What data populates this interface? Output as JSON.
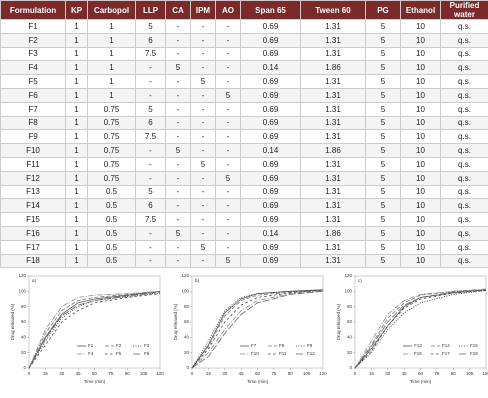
{
  "table": {
    "header": [
      "Formulation",
      "KP",
      "Carbopol",
      "LLP",
      "CA",
      "IPM",
      "AO",
      "Span 65",
      "Tween 60",
      "PG",
      "Ethanol",
      "Purified water"
    ],
    "rows": [
      [
        "F1",
        "1",
        "1",
        "5",
        "-",
        "-",
        "-",
        "0.69",
        "1.31",
        "5",
        "10",
        "q.s."
      ],
      [
        "F2",
        "1",
        "1",
        "6",
        "-",
        "-",
        "-",
        "0.69",
        "1.31",
        "5",
        "10",
        "q.s."
      ],
      [
        "F3",
        "1",
        "1",
        "7.5",
        "-",
        "-",
        "-",
        "0.69",
        "1.31",
        "5",
        "10",
        "q.s."
      ],
      [
        "F4",
        "1",
        "1",
        "-",
        "5",
        "-",
        "-",
        "0.14",
        "1.86",
        "5",
        "10",
        "q.s."
      ],
      [
        "F5",
        "1",
        "1",
        "-",
        "-",
        "5",
        "-",
        "0.69",
        "1.31",
        "5",
        "10",
        "q.s."
      ],
      [
        "F6",
        "1",
        "1",
        "-",
        "-",
        "-",
        "5",
        "0.69",
        "1.31",
        "5",
        "10",
        "q.s."
      ],
      [
        "F7",
        "1",
        "0.75",
        "5",
        "-",
        "-",
        "-",
        "0.69",
        "1.31",
        "5",
        "10",
        "q.s."
      ],
      [
        "F8",
        "1",
        "0.75",
        "6",
        "-",
        "-",
        "-",
        "0.69",
        "1.31",
        "5",
        "10",
        "q.s."
      ],
      [
        "F9",
        "1",
        "0.75",
        "7.5",
        "-",
        "-",
        "-",
        "0.69",
        "1.31",
        "5",
        "10",
        "q.s."
      ],
      [
        "F10",
        "1",
        "0.75",
        "-",
        "5",
        "-",
        "-",
        "0.14",
        "1.86",
        "5",
        "10",
        "q.s."
      ],
      [
        "F11",
        "1",
        "0.75",
        "-",
        "-",
        "5",
        "-",
        "0.69",
        "1.31",
        "5",
        "10",
        "q.s."
      ],
      [
        "F12",
        "1",
        "0.75",
        "-",
        "-",
        "-",
        "5",
        "0.69",
        "1.31",
        "5",
        "10",
        "q.s."
      ],
      [
        "F13",
        "1",
        "0.5",
        "5",
        "-",
        "-",
        "-",
        "0.69",
        "1.31",
        "5",
        "10",
        "q.s."
      ],
      [
        "F14",
        "1",
        "0.5",
        "6",
        "-",
        "-",
        "-",
        "0.69",
        "1.31",
        "5",
        "10",
        "q.s."
      ],
      [
        "F15",
        "1",
        "0.5",
        "7.5",
        "-",
        "-",
        "-",
        "0.69",
        "1.31",
        "5",
        "10",
        "q.s."
      ],
      [
        "F16",
        "1",
        "0.5",
        "-",
        "5",
        "-",
        "-",
        "0.14",
        "1.86",
        "5",
        "10",
        "q.s."
      ],
      [
        "F17",
        "1",
        "0.5",
        "-",
        "-",
        "5",
        "-",
        "0.69",
        "1.31",
        "5",
        "10",
        "q.s."
      ],
      [
        "F18",
        "1",
        "0.5",
        "-",
        "-",
        "-",
        "5",
        "0.69",
        "1.31",
        "5",
        "10",
        "q.s."
      ]
    ]
  },
  "chart_data": [
    {
      "type": "line",
      "label": "a)",
      "x_label": "Time (min)",
      "y_label": "Drug released (%)",
      "x": [
        0,
        15,
        30,
        45,
        60,
        90,
        120
      ],
      "xlim": [
        0,
        120
      ],
      "ylim": [
        0,
        120
      ],
      "xticks": [
        0,
        15,
        30,
        45,
        60,
        75,
        90,
        105,
        120
      ],
      "yticks": [
        0,
        20,
        40,
        60,
        80,
        100,
        120
      ],
      "series": [
        {
          "name": "F1",
          "color": "#555",
          "values": [
            0,
            40,
            70,
            85,
            90,
            95,
            100
          ]
        },
        {
          "name": "F2",
          "color": "#777",
          "values": [
            0,
            45,
            75,
            88,
            92,
            96,
            100
          ]
        },
        {
          "name": "F3",
          "color": "#333",
          "values": [
            0,
            35,
            65,
            80,
            88,
            93,
            98
          ]
        },
        {
          "name": "F4",
          "color": "#888",
          "values": [
            0,
            50,
            80,
            92,
            95,
            97,
            100
          ]
        },
        {
          "name": "F5",
          "color": "#444",
          "values": [
            0,
            30,
            60,
            75,
            85,
            92,
            97
          ]
        },
        {
          "name": "F6",
          "color": "#666",
          "values": [
            0,
            38,
            68,
            82,
            88,
            94,
            99
          ]
        }
      ]
    },
    {
      "type": "line",
      "label": "b)",
      "x_label": "Time (min)",
      "y_label": "Drug released (%)",
      "x": [
        0,
        15,
        30,
        45,
        60,
        90,
        120
      ],
      "xlim": [
        0,
        120
      ],
      "ylim": [
        0,
        120
      ],
      "xticks": [
        0,
        15,
        30,
        45,
        60,
        75,
        90,
        105,
        120
      ],
      "yticks": [
        0,
        20,
        40,
        60,
        80,
        100,
        120
      ],
      "series": [
        {
          "name": "F7",
          "color": "#555",
          "values": [
            0,
            30,
            72,
            90,
            97,
            100,
            102
          ]
        },
        {
          "name": "F8",
          "color": "#777",
          "values": [
            0,
            28,
            68,
            88,
            95,
            99,
            101
          ]
        },
        {
          "name": "F9",
          "color": "#333",
          "values": [
            0,
            35,
            75,
            92,
            97,
            100,
            102
          ]
        },
        {
          "name": "F10",
          "color": "#888",
          "values": [
            0,
            20,
            50,
            75,
            88,
            97,
            101
          ]
        },
        {
          "name": "F11",
          "color": "#444",
          "values": [
            0,
            25,
            60,
            82,
            92,
            98,
            102
          ]
        },
        {
          "name": "F12",
          "color": "#666",
          "values": [
            0,
            15,
            45,
            70,
            85,
            96,
            100
          ]
        }
      ]
    },
    {
      "type": "line",
      "label": "c)",
      "x_label": "Time (min)",
      "y_label": "Drug released (%)",
      "x": [
        0,
        15,
        30,
        45,
        60,
        90,
        120
      ],
      "xlim": [
        0,
        120
      ],
      "ylim": [
        0,
        120
      ],
      "xticks": [
        0,
        15,
        30,
        45,
        60,
        75,
        90,
        105,
        120
      ],
      "yticks": [
        0,
        20,
        40,
        60,
        80,
        100,
        120
      ],
      "series": [
        {
          "name": "F13",
          "color": "#555",
          "values": [
            0,
            25,
            55,
            80,
            92,
            98,
            102
          ]
        },
        {
          "name": "F14",
          "color": "#777",
          "values": [
            0,
            30,
            65,
            85,
            95,
            100,
            102
          ]
        },
        {
          "name": "F15",
          "color": "#333",
          "values": [
            0,
            20,
            50,
            72,
            85,
            96,
            101
          ]
        },
        {
          "name": "F16",
          "color": "#888",
          "values": [
            0,
            35,
            70,
            88,
            96,
            100,
            103
          ]
        },
        {
          "name": "F17",
          "color": "#444",
          "values": [
            0,
            22,
            55,
            78,
            90,
            98,
            101
          ]
        },
        {
          "name": "F18",
          "color": "#666",
          "values": [
            0,
            28,
            60,
            82,
            92,
            99,
            102
          ]
        }
      ]
    }
  ]
}
